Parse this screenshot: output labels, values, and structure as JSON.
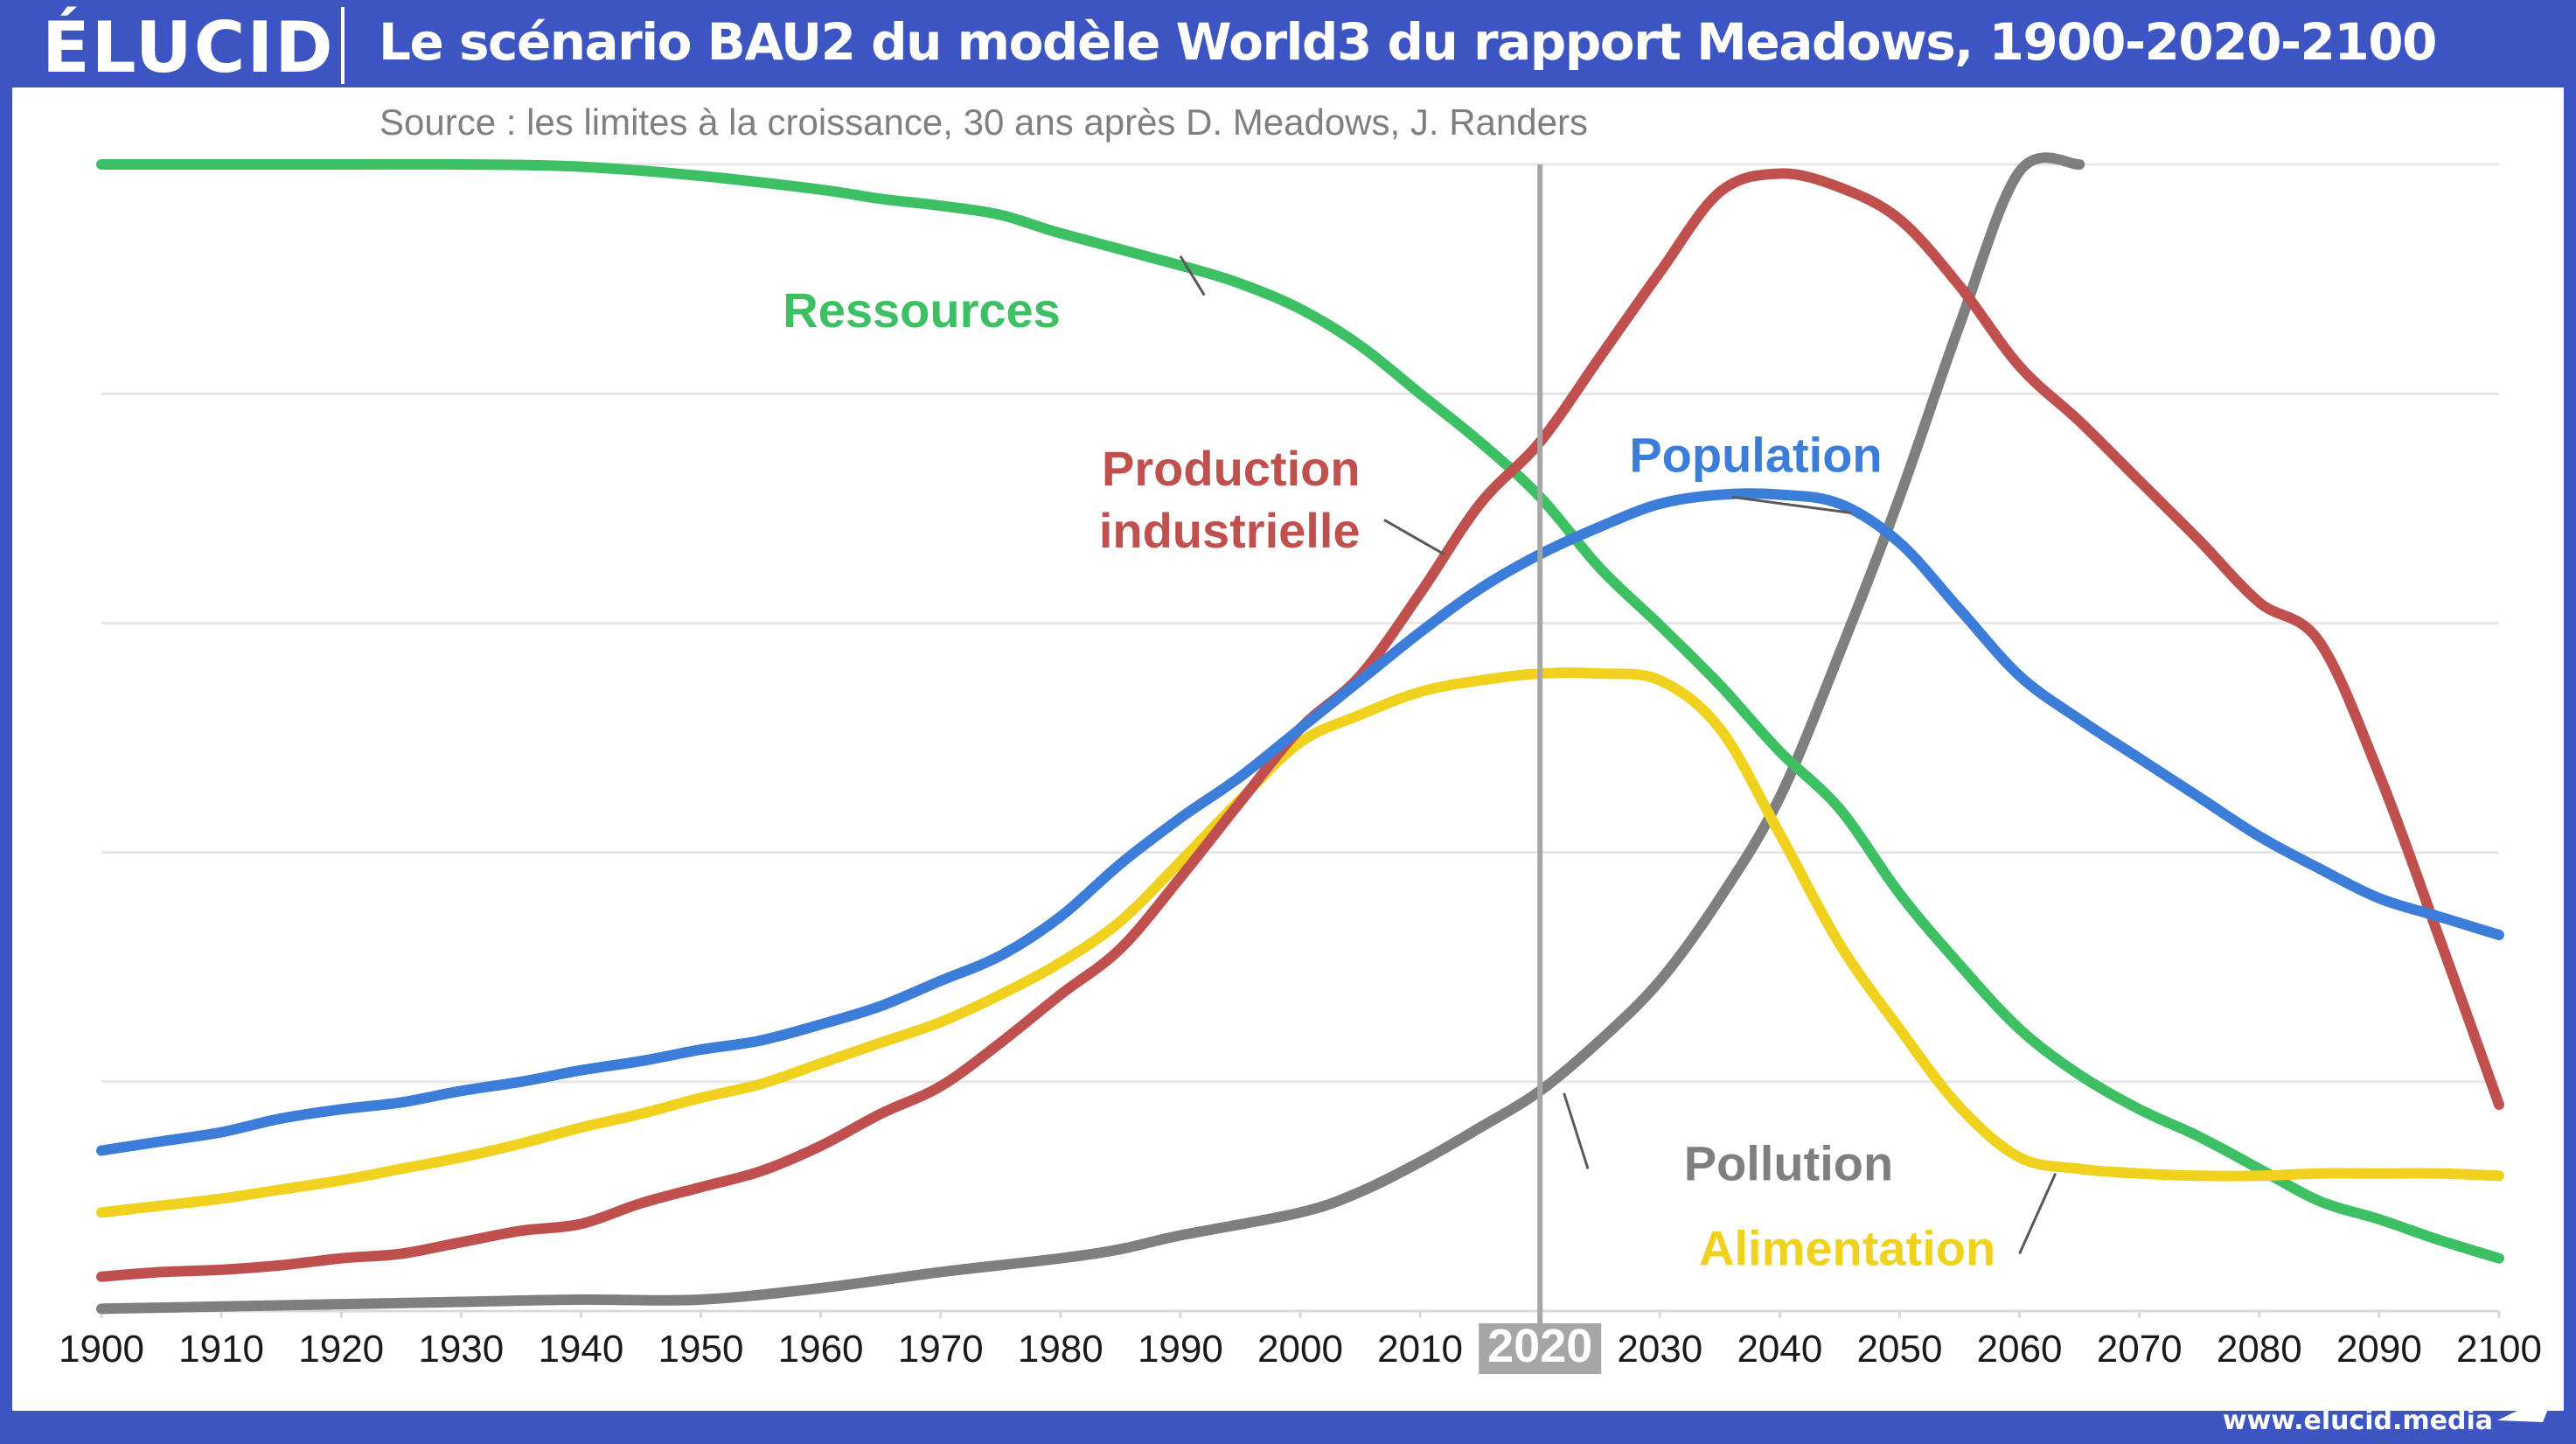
{
  "header": {
    "logo": "ÉLUCID",
    "title": "Le scénario BAU2 du modèle World3 du rapport Meadows, 1900-2020-2100"
  },
  "footer": {
    "url": "www.elucid.media"
  },
  "colors": {
    "header_bg": "#3d55c2",
    "ressources": "#3dbf63",
    "production": "#c0504d",
    "population": "#3b7dd8",
    "alimentation": "#f0d21e",
    "pollution": "#7f7f7f",
    "marker": "#a6a6a6"
  },
  "chart_data": {
    "type": "line",
    "title": "Le scénario BAU2 du modèle World3 du rapport Meadows, 1900-2020-2100",
    "subtitle": "Source : les limites à la croissance, 30 ans après D. Meadows, J. Randers",
    "xlabel": "",
    "ylabel": "",
    "x_ticks": [
      1900,
      1910,
      1920,
      1930,
      1940,
      1950,
      1960,
      1970,
      1980,
      1990,
      2000,
      2010,
      2020,
      2030,
      2040,
      2050,
      2060,
      2070,
      2080,
      2090,
      2100
    ],
    "highlight_tick": 2020,
    "xlim": [
      1900,
      2100
    ],
    "ylim": [
      0,
      5
    ],
    "grid": true,
    "grid_lines": [
      1,
      2,
      3,
      4,
      5
    ],
    "y_tick_labels": false,
    "series": [
      {
        "name": "Ressources",
        "color": "#3dbf63",
        "points": [
          [
            1900,
            5.0
          ],
          [
            1910,
            5.0
          ],
          [
            1920,
            5.0
          ],
          [
            1930,
            5.0
          ],
          [
            1940,
            4.99
          ],
          [
            1950,
            4.95
          ],
          [
            1960,
            4.89
          ],
          [
            1965,
            4.85
          ],
          [
            1970,
            4.82
          ],
          [
            1975,
            4.78
          ],
          [
            1980,
            4.7
          ],
          [
            1990,
            4.56
          ],
          [
            1995,
            4.48
          ],
          [
            2000,
            4.37
          ],
          [
            2005,
            4.21
          ],
          [
            2010,
            4.0
          ],
          [
            2015,
            3.79
          ],
          [
            2020,
            3.55
          ],
          [
            2025,
            3.24
          ],
          [
            2030,
            2.99
          ],
          [
            2035,
            2.73
          ],
          [
            2040,
            2.44
          ],
          [
            2045,
            2.19
          ],
          [
            2050,
            1.82
          ],
          [
            2055,
            1.51
          ],
          [
            2060,
            1.23
          ],
          [
            2065,
            1.03
          ],
          [
            2070,
            0.88
          ],
          [
            2075,
            0.76
          ],
          [
            2080,
            0.62
          ],
          [
            2085,
            0.48
          ],
          [
            2090,
            0.4
          ],
          [
            2095,
            0.31
          ],
          [
            2100,
            0.23
          ]
        ]
      },
      {
        "name": "Production industrielle",
        "color": "#c0504d",
        "points": [
          [
            1900,
            0.15
          ],
          [
            1905,
            0.17
          ],
          [
            1910,
            0.18
          ],
          [
            1915,
            0.2
          ],
          [
            1920,
            0.23
          ],
          [
            1925,
            0.25
          ],
          [
            1930,
            0.3
          ],
          [
            1935,
            0.35
          ],
          [
            1940,
            0.38
          ],
          [
            1945,
            0.47
          ],
          [
            1950,
            0.54
          ],
          [
            1955,
            0.61
          ],
          [
            1960,
            0.72
          ],
          [
            1965,
            0.86
          ],
          [
            1970,
            0.98
          ],
          [
            1975,
            1.17
          ],
          [
            1980,
            1.38
          ],
          [
            1985,
            1.58
          ],
          [
            1990,
            1.89
          ],
          [
            1995,
            2.22
          ],
          [
            2000,
            2.54
          ],
          [
            2005,
            2.77
          ],
          [
            2010,
            3.13
          ],
          [
            2015,
            3.52
          ],
          [
            2020,
            3.79
          ],
          [
            2025,
            4.16
          ],
          [
            2030,
            4.53
          ],
          [
            2035,
            4.88
          ],
          [
            2040,
            4.96
          ],
          [
            2045,
            4.9
          ],
          [
            2050,
            4.76
          ],
          [
            2055,
            4.47
          ],
          [
            2060,
            4.12
          ],
          [
            2065,
            3.88
          ],
          [
            2070,
            3.62
          ],
          [
            2075,
            3.36
          ],
          [
            2080,
            3.09
          ],
          [
            2085,
            2.92
          ],
          [
            2090,
            2.34
          ],
          [
            2095,
            1.63
          ],
          [
            2100,
            0.9
          ]
        ]
      },
      {
        "name": "Population",
        "color": "#3b7dd8",
        "points": [
          [
            1900,
            0.7
          ],
          [
            1905,
            0.74
          ],
          [
            1910,
            0.78
          ],
          [
            1915,
            0.84
          ],
          [
            1920,
            0.88
          ],
          [
            1925,
            0.91
          ],
          [
            1930,
            0.96
          ],
          [
            1935,
            1.0
          ],
          [
            1940,
            1.05
          ],
          [
            1945,
            1.09
          ],
          [
            1950,
            1.14
          ],
          [
            1955,
            1.18
          ],
          [
            1960,
            1.25
          ],
          [
            1965,
            1.33
          ],
          [
            1970,
            1.44
          ],
          [
            1975,
            1.55
          ],
          [
            1980,
            1.72
          ],
          [
            1985,
            1.95
          ],
          [
            1990,
            2.15
          ],
          [
            1995,
            2.33
          ],
          [
            2000,
            2.54
          ],
          [
            2005,
            2.75
          ],
          [
            2010,
            2.96
          ],
          [
            2015,
            3.15
          ],
          [
            2020,
            3.3
          ],
          [
            2025,
            3.42
          ],
          [
            2030,
            3.52
          ],
          [
            2035,
            3.56
          ],
          [
            2040,
            3.56
          ],
          [
            2045,
            3.52
          ],
          [
            2050,
            3.35
          ],
          [
            2055,
            3.06
          ],
          [
            2060,
            2.77
          ],
          [
            2065,
            2.58
          ],
          [
            2070,
            2.41
          ],
          [
            2075,
            2.24
          ],
          [
            2080,
            2.07
          ],
          [
            2085,
            1.93
          ],
          [
            2090,
            1.8
          ],
          [
            2095,
            1.72
          ],
          [
            2100,
            1.64
          ]
        ]
      },
      {
        "name": "Alimentation",
        "color": "#f0d21e",
        "points": [
          [
            1900,
            0.43
          ],
          [
            1905,
            0.46
          ],
          [
            1910,
            0.49
          ],
          [
            1915,
            0.53
          ],
          [
            1920,
            0.57
          ],
          [
            1925,
            0.62
          ],
          [
            1930,
            0.67
          ],
          [
            1935,
            0.73
          ],
          [
            1940,
            0.8
          ],
          [
            1945,
            0.86
          ],
          [
            1950,
            0.93
          ],
          [
            1955,
            0.99
          ],
          [
            1960,
            1.08
          ],
          [
            1965,
            1.17
          ],
          [
            1970,
            1.26
          ],
          [
            1975,
            1.38
          ],
          [
            1980,
            1.52
          ],
          [
            1985,
            1.7
          ],
          [
            1990,
            1.96
          ],
          [
            1995,
            2.23
          ],
          [
            2000,
            2.48
          ],
          [
            2005,
            2.6
          ],
          [
            2010,
            2.7
          ],
          [
            2015,
            2.75
          ],
          [
            2020,
            2.78
          ],
          [
            2025,
            2.78
          ],
          [
            2030,
            2.75
          ],
          [
            2035,
            2.54
          ],
          [
            2040,
            2.08
          ],
          [
            2045,
            1.6
          ],
          [
            2050,
            1.23
          ],
          [
            2055,
            0.89
          ],
          [
            2060,
            0.67
          ],
          [
            2065,
            0.62
          ],
          [
            2070,
            0.6
          ],
          [
            2075,
            0.59
          ],
          [
            2080,
            0.59
          ],
          [
            2085,
            0.6
          ],
          [
            2090,
            0.6
          ],
          [
            2095,
            0.6
          ],
          [
            2100,
            0.59
          ]
        ]
      },
      {
        "name": "Pollution",
        "color": "#7f7f7f",
        "points": [
          [
            1900,
            0.01
          ],
          [
            1910,
            0.02
          ],
          [
            1920,
            0.03
          ],
          [
            1930,
            0.04
          ],
          [
            1940,
            0.05
          ],
          [
            1950,
            0.05
          ],
          [
            1960,
            0.1
          ],
          [
            1970,
            0.17
          ],
          [
            1980,
            0.23
          ],
          [
            1985,
            0.27
          ],
          [
            1990,
            0.33
          ],
          [
            2000,
            0.43
          ],
          [
            2005,
            0.52
          ],
          [
            2010,
            0.65
          ],
          [
            2015,
            0.8
          ],
          [
            2020,
            0.96
          ],
          [
            2025,
            1.18
          ],
          [
            2030,
            1.44
          ],
          [
            2035,
            1.8
          ],
          [
            2040,
            2.24
          ],
          [
            2045,
            2.87
          ],
          [
            2050,
            3.55
          ],
          [
            2055,
            4.3
          ],
          [
            2060,
            4.97
          ],
          [
            2065,
            5.0
          ]
        ]
      }
    ],
    "labels": [
      {
        "series": "Ressources",
        "text": "Ressources",
        "x": 1980,
        "y": 4.29,
        "anchor": "end",
        "leader": [
          [
            1992,
            4.43
          ],
          [
            1990,
            4.6
          ]
        ]
      },
      {
        "series": "Production industrielle",
        "text": "Production",
        "x": 2005,
        "y": 3.6,
        "anchor": "end"
      },
      {
        "series": "Production industrielle",
        "text": "industrielle",
        "x": 2005,
        "y": 3.33,
        "anchor": "end",
        "leader": [
          [
            2007,
            3.45
          ],
          [
            2012,
            3.3
          ]
        ]
      },
      {
        "series": "Population",
        "text": "Population",
        "x": 2038,
        "y": 3.66,
        "anchor": "middle",
        "leader": [
          [
            2036,
            3.55
          ],
          [
            2046,
            3.48
          ]
        ]
      },
      {
        "series": "Pollution",
        "text": "Pollution",
        "x": 2032,
        "y": 0.57,
        "anchor": "start",
        "leader": [
          [
            2024,
            0.62
          ],
          [
            2022,
            0.95
          ]
        ]
      },
      {
        "series": "Alimentation",
        "text": "Alimentation",
        "x": 2058,
        "y": 0.2,
        "anchor": "end",
        "leader": [
          [
            2060,
            0.25
          ],
          [
            2063,
            0.6
          ]
        ]
      }
    ],
    "vertical_marker": {
      "x": 2020,
      "color": "#a6a6a6"
    }
  }
}
